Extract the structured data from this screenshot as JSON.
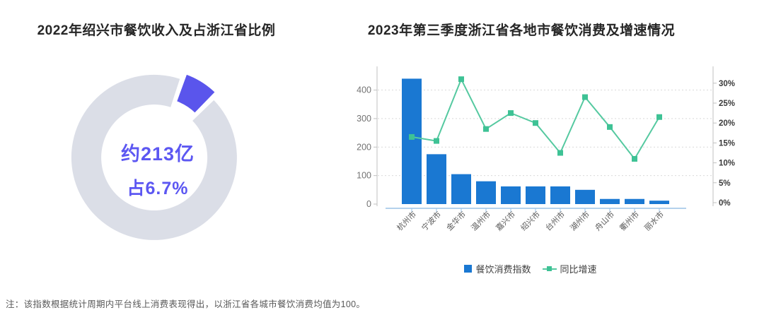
{
  "chart_data": [
    {
      "id": "shaoxing-share-donut",
      "type": "pie",
      "subtype": "donut-exploded-slice",
      "title": "2022年绍兴市餐饮收入及占浙江省比例",
      "values_percent": [
        6.7,
        93.3
      ],
      "center_text_line1": "约213亿",
      "center_text_line2": "占6.7%",
      "colors": {
        "highlight": "#5A55EC",
        "remainder": "#DBDEE7",
        "center_text": "#5C57F2"
      },
      "legend_position": "none"
    },
    {
      "id": "zhejiang-city-combo",
      "type": "bar",
      "subtype": "bar+line-dual-axis",
      "title": "2023年第三季度浙江省各地市餐饮消费及增速情况",
      "categories": [
        "杭州市",
        "宁波市",
        "金华市",
        "温州市",
        "嘉兴市",
        "绍兴市",
        "台州市",
        "湖州市",
        "舟山市",
        "衢州市",
        "丽水市"
      ],
      "series": [
        {
          "name": "餐饮消费指数",
          "type": "bar",
          "axis": "left",
          "color": "#1A78D2",
          "values": [
            440,
            175,
            105,
            80,
            62,
            62,
            62,
            50,
            18,
            18,
            12
          ]
        },
        {
          "name": "同比增速",
          "type": "line",
          "axis": "right",
          "color": "#55C9A0",
          "marker_color": "#3EC295",
          "values_percent": [
            16.5,
            15.5,
            31,
            18.5,
            22.5,
            20,
            12.5,
            26.5,
            19,
            11,
            21.5
          ]
        }
      ],
      "left_axis": {
        "ticks": [
          0,
          100,
          200,
          300,
          400
        ],
        "range": [
          0,
          460
        ]
      },
      "right_axis": {
        "tick_values": [
          0,
          5,
          10,
          15,
          20,
          25,
          30
        ],
        "tick_labels": [
          "0%",
          "5%",
          "10%",
          "15%",
          "20%",
          "25%",
          "30%"
        ],
        "range": [
          0,
          32.5
        ]
      },
      "grid": "horizontal-dashed",
      "legend_position": "bottom",
      "axis_colors": {
        "x_axis_line": "#9CC2E5",
        "axis_line": "#C0C0C0",
        "grid_line": "#D9D9D9"
      }
    }
  ],
  "footnote": "注：该指数根据统计周期内平台线上消费表现得出，以浙江省各城市餐饮消费均值为100。"
}
